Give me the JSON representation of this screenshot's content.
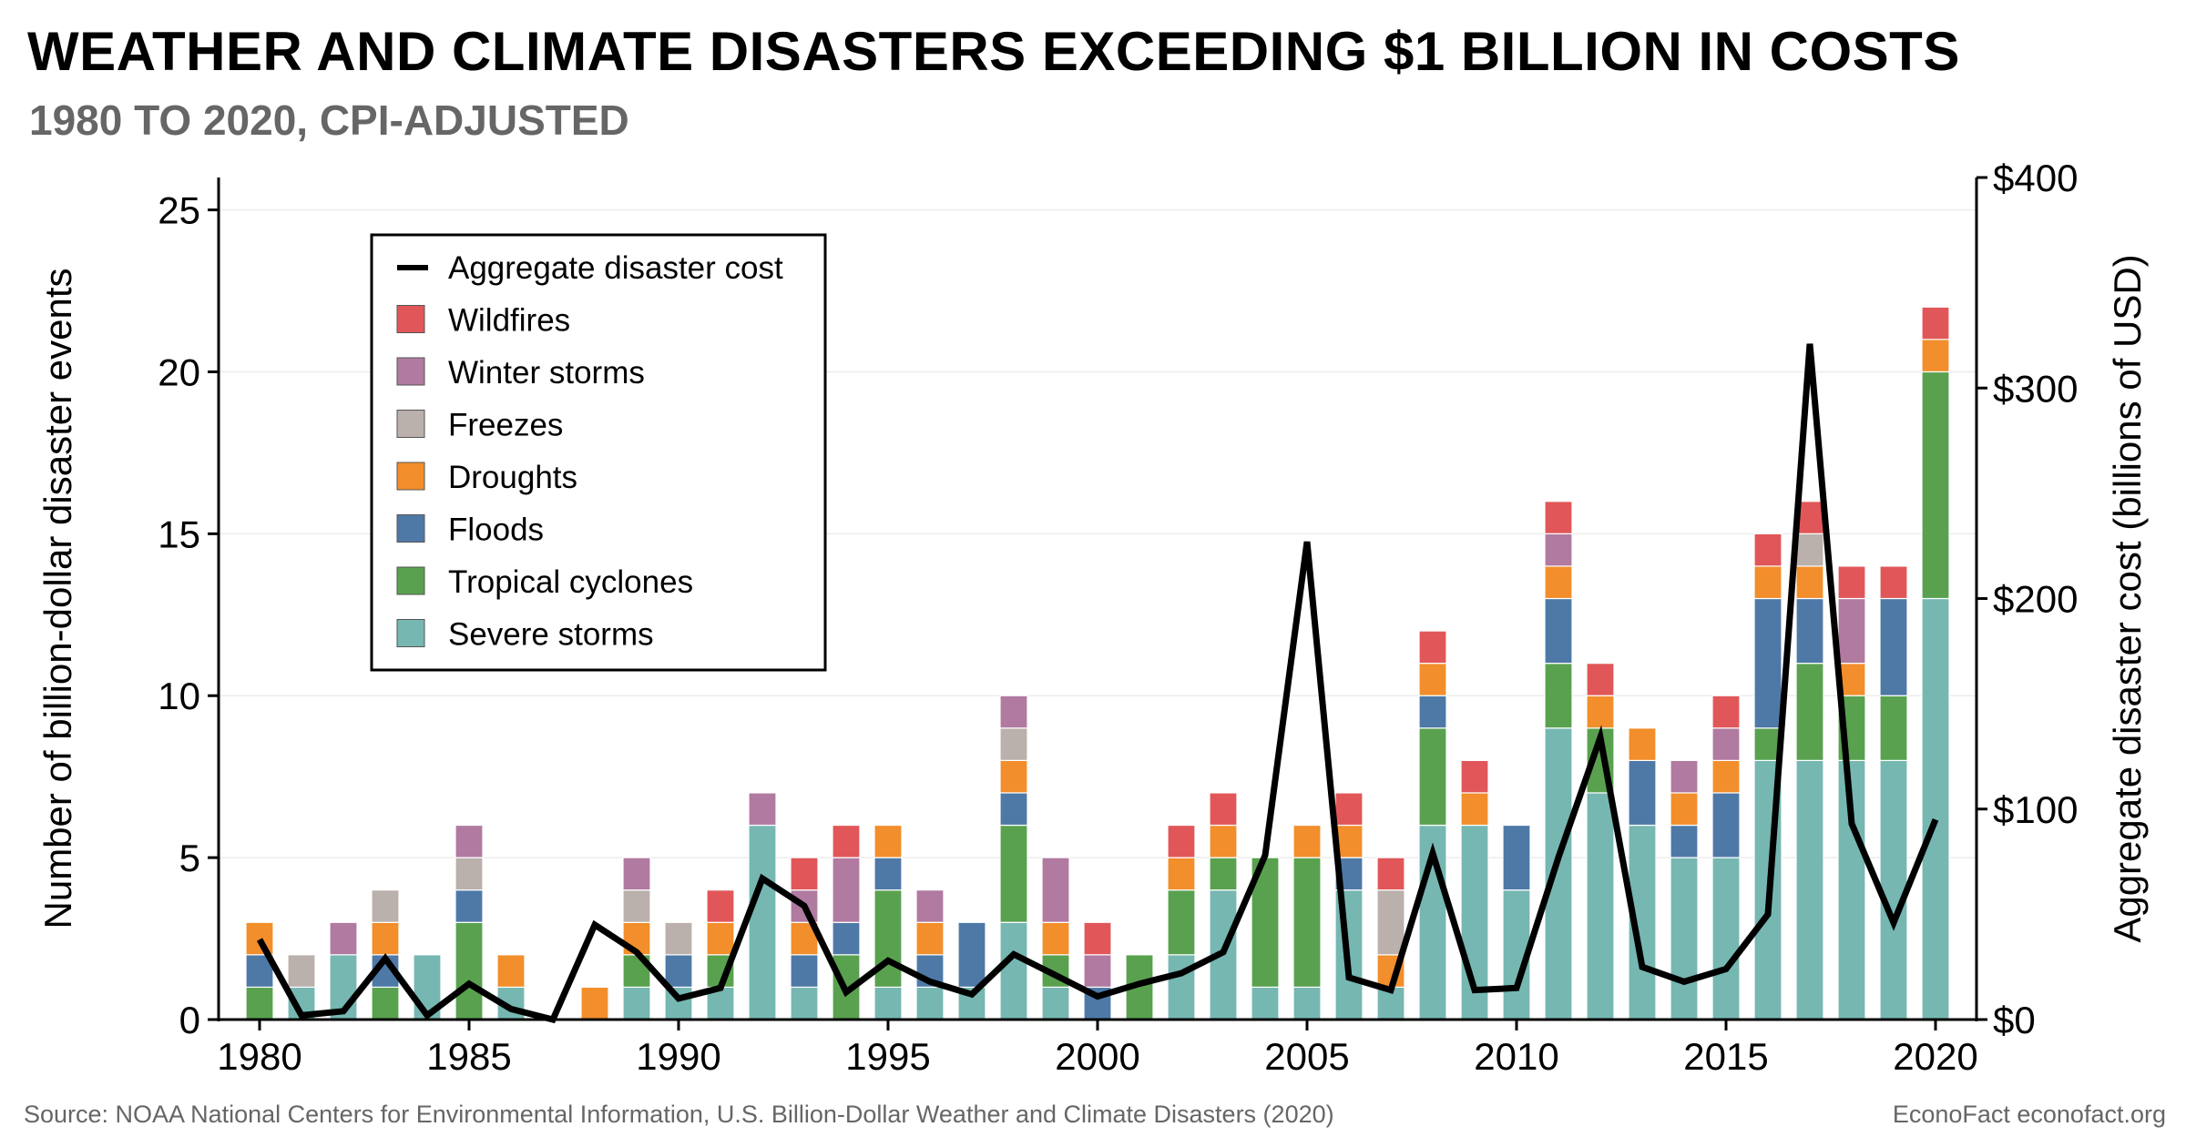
{
  "header": {
    "title": "WEATHER AND CLIMATE DISASTERS EXCEEDING $1 BILLION IN COSTS",
    "subtitle": "1980 TO 2020, CPI-ADJUSTED"
  },
  "footer": {
    "source": "Source: NOAA National Centers for Environmental Information, U.S. Billion-Dollar Weather and Climate Disasters (2020)",
    "credit": "EconoFact  econofact.org"
  },
  "chart_data": {
    "type": "bar",
    "stacked": true,
    "x": [
      1980,
      1981,
      1982,
      1983,
      1984,
      1985,
      1986,
      1987,
      1988,
      1989,
      1990,
      1991,
      1992,
      1993,
      1994,
      1995,
      1996,
      1997,
      1998,
      1999,
      2000,
      2001,
      2002,
      2003,
      2004,
      2005,
      2006,
      2007,
      2008,
      2009,
      2010,
      2011,
      2012,
      2013,
      2014,
      2015,
      2016,
      2017,
      2018,
      2019,
      2020
    ],
    "xticks": [
      "1980",
      "1985",
      "1990",
      "1995",
      "2000",
      "2005",
      "2010",
      "2015",
      "2020"
    ],
    "ylabel": "Number of billion-dollar disaster events",
    "ylim": [
      0,
      26
    ],
    "yticks": [
      "0",
      "5",
      "10",
      "15",
      "20",
      "25"
    ],
    "y2label": "Aggregate disaster cost (billions of USD)",
    "y2lim": [
      0,
      400
    ],
    "y2ticks": [
      "$0",
      "$100",
      "$200",
      "$300",
      "$400"
    ],
    "legend_position": "top-left",
    "series": [
      {
        "name": "Severe storms",
        "color": "#76b7b2",
        "values": [
          0,
          1,
          2,
          0,
          2,
          0,
          1,
          0,
          0,
          1,
          1,
          1,
          6,
          1,
          0,
          1,
          1,
          1,
          3,
          1,
          0,
          0,
          2,
          4,
          1,
          1,
          4,
          1,
          6,
          6,
          4,
          9,
          7,
          6,
          5,
          5,
          8,
          8,
          8,
          8,
          13
        ]
      },
      {
        "name": "Tropical cyclones",
        "color": "#59a14f",
        "values": [
          1,
          0,
          0,
          1,
          0,
          3,
          0,
          0,
          0,
          1,
          0,
          1,
          0,
          0,
          2,
          3,
          0,
          0,
          3,
          1,
          0,
          2,
          2,
          1,
          4,
          4,
          0,
          0,
          3,
          0,
          0,
          2,
          2,
          0,
          0,
          0,
          1,
          3,
          2,
          2,
          7
        ]
      },
      {
        "name": "Floods",
        "color": "#4e79a7",
        "values": [
          1,
          0,
          0,
          1,
          0,
          1,
          0,
          0,
          0,
          0,
          1,
          0,
          0,
          1,
          1,
          1,
          1,
          2,
          1,
          0,
          1,
          0,
          0,
          0,
          0,
          0,
          1,
          0,
          1,
          0,
          2,
          2,
          0,
          2,
          1,
          2,
          4,
          2,
          0,
          3,
          0
        ]
      },
      {
        "name": "Droughts",
        "color": "#f28e2b",
        "values": [
          1,
          0,
          0,
          1,
          0,
          0,
          1,
          0,
          1,
          1,
          0,
          1,
          0,
          1,
          0,
          1,
          1,
          0,
          1,
          1,
          0,
          0,
          1,
          1,
          0,
          1,
          1,
          1,
          1,
          1,
          0,
          1,
          1,
          1,
          1,
          1,
          1,
          1,
          1,
          0,
          1
        ]
      },
      {
        "name": "Freezes",
        "color": "#bab0ac",
        "values": [
          0,
          1,
          0,
          1,
          0,
          1,
          0,
          0,
          0,
          1,
          1,
          0,
          0,
          0,
          0,
          0,
          0,
          0,
          1,
          0,
          0,
          0,
          0,
          0,
          0,
          0,
          0,
          2,
          0,
          0,
          0,
          0,
          0,
          0,
          0,
          0,
          0,
          1,
          0,
          0,
          0
        ]
      },
      {
        "name": "Winter storms",
        "color": "#b07aa1",
        "values": [
          0,
          0,
          1,
          0,
          0,
          1,
          0,
          0,
          0,
          1,
          0,
          0,
          1,
          1,
          2,
          0,
          1,
          0,
          1,
          2,
          1,
          0,
          0,
          0,
          0,
          0,
          0,
          0,
          0,
          0,
          0,
          1,
          0,
          0,
          1,
          1,
          0,
          0,
          2,
          0,
          0
        ]
      },
      {
        "name": "Wildfires",
        "color": "#e15759",
        "values": [
          0,
          0,
          0,
          0,
          0,
          0,
          0,
          0,
          0,
          0,
          0,
          1,
          0,
          1,
          1,
          0,
          0,
          0,
          0,
          0,
          1,
          0,
          1,
          1,
          0,
          0,
          1,
          1,
          1,
          1,
          0,
          1,
          1,
          0,
          0,
          1,
          1,
          1,
          1,
          1,
          1
        ]
      }
    ],
    "line": {
      "name": "Aggregate disaster cost",
      "axis": "right",
      "color": "#000000",
      "values": [
        38,
        2,
        4,
        29,
        2,
        17,
        5,
        0,
        45,
        32,
        10,
        15,
        67,
        54,
        13,
        28,
        18,
        12,
        31,
        21,
        11,
        17,
        22,
        32,
        78,
        227,
        20,
        14,
        79,
        14,
        15,
        77,
        134,
        25,
        18,
        24,
        50,
        321,
        93,
        46,
        95
      ]
    }
  }
}
